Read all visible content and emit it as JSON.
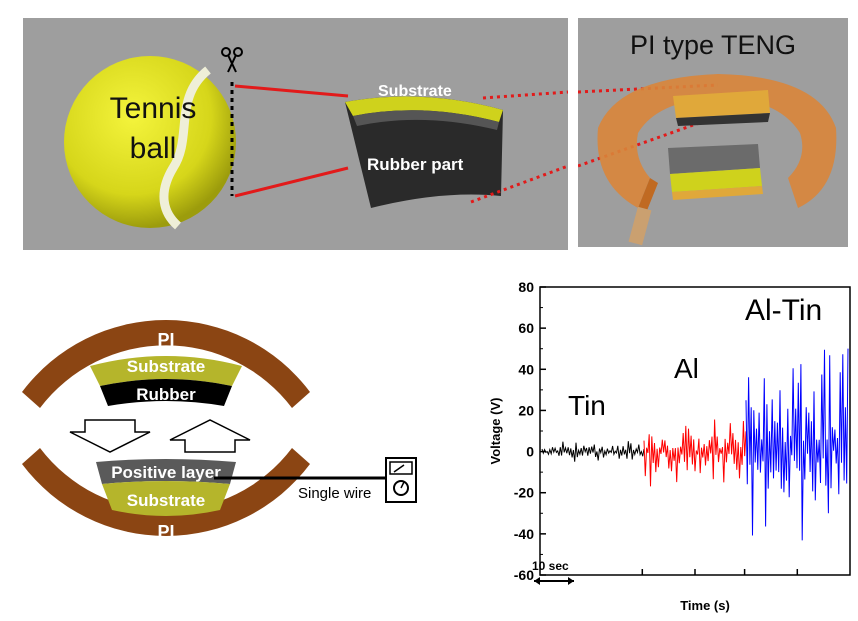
{
  "photo_panel": {
    "ball_label_line1": "Tennis",
    "ball_label_line2": "ball",
    "scissors_icon": "scissors-icon",
    "substrate_label": "Substrate",
    "rubber_label": "Rubber part"
  },
  "teng_panel": {
    "title": "PI type TENG"
  },
  "schematic": {
    "top_pi": "PI",
    "top_substrate": "Substrate",
    "top_rubber": "Rubber",
    "bottom_positive": "Positive layer",
    "bottom_substrate": "Substrate",
    "bottom_pi": "PI",
    "wire_label": "Single wire",
    "meter_icon": "voltmeter-icon",
    "arrow_down_icon": "arrow-down-icon",
    "arrow_up_icon": "arrow-up-icon"
  },
  "chart_data": {
    "type": "line",
    "xlabel": "Time (s)",
    "ylabel": "Voltage (V)",
    "ylim": [
      -60,
      80
    ],
    "yticks": [
      "80",
      "60",
      "40",
      "20",
      "0",
      "-20",
      "-40",
      "-60"
    ],
    "scale_bar_label": "10 sec",
    "series": [
      {
        "name": "Tin",
        "color": "#000000",
        "amplitude": 6
      },
      {
        "name": "Al",
        "color": "#ff0000",
        "amplitude": 22
      },
      {
        "name": "Al-Tin",
        "color": "#0000ff",
        "amplitude": 60
      }
    ],
    "segment_labels": [
      "Tin",
      "Al",
      "Al-Tin"
    ]
  }
}
